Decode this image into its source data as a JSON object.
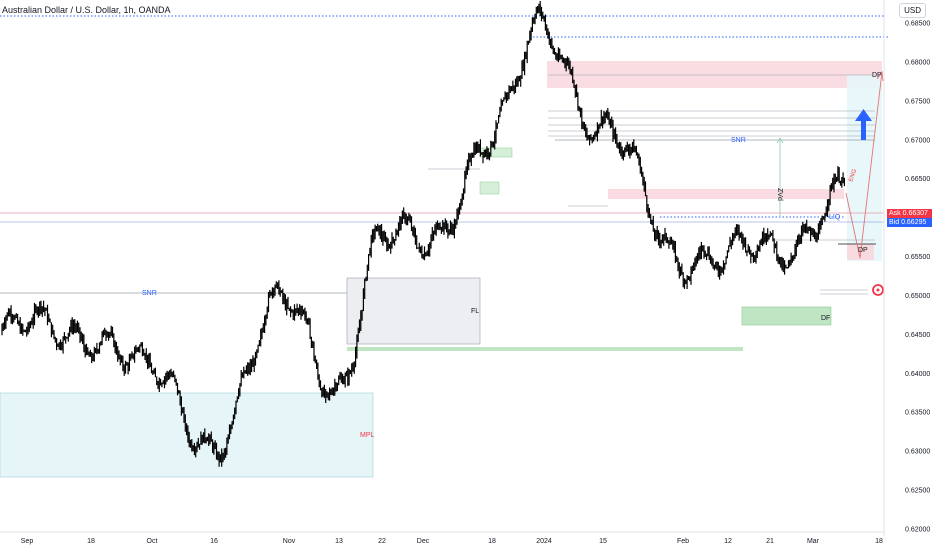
{
  "header": {
    "title": "Australian Dollar / U.S. Dollar, 1h, OANDA",
    "currency": "USD"
  },
  "quotes": {
    "ask_label": "Ask",
    "ask_value": "0.66307",
    "bid_label": "Bid",
    "bid_value": "0.66295"
  },
  "annotations": {
    "snr_left": "SNR",
    "snr_right": "SNR",
    "fl": "FL",
    "mpl": "MPL",
    "dp_top": "DP",
    "dp_bottom": "DP",
    "ipa": "ZVd",
    "liq": "LIQ",
    "eng": "ENG",
    "df": "DF"
  },
  "colors": {
    "candles": "#000000",
    "pink_zone": "#f8d7de",
    "cyan_zone": "#e6f6f8",
    "green_zone": "#bfe5c3",
    "gray_zone": "#eceef1",
    "blue_arrow": "#2962ff",
    "red_line": "#e57373"
  },
  "chart_data": {
    "type": "line",
    "title": "Australian Dollar / U.S. Dollar, 1h, OANDA",
    "y_axis": {
      "ticks": [
        "0.68500",
        "0.68000",
        "0.67500",
        "0.67000",
        "0.66500",
        "0.66000",
        "0.65500",
        "0.65000",
        "0.64500",
        "0.64000",
        "0.63500",
        "0.63000",
        "0.62500",
        "0.62000"
      ],
      "range": [
        0.6195,
        0.6895
      ]
    },
    "x_axis": {
      "ticks": [
        "Sep",
        "18",
        "Oct",
        "16",
        "Nov",
        "13",
        "22",
        "Dec",
        "18",
        "2024",
        "15",
        "Feb",
        "12",
        "21",
        "Mar",
        "18"
      ]
    },
    "series": [
      {
        "name": "",
        "x": [
          "Sep",
          "18",
          "Oct",
          "16",
          "Nov",
          "13",
          "22",
          "Dec",
          "18",
          "2024",
          "15",
          "Feb",
          "12",
          "21",
          "Mar"
        ],
        "values": [
          0.645,
          0.646,
          0.639,
          0.632,
          0.649,
          0.639,
          0.656,
          0.658,
          0.669,
          0.686,
          0.67,
          0.656,
          0.654,
          0.656,
          0.663
        ]
      }
    ],
    "current_price": 0.663,
    "grid": false
  }
}
